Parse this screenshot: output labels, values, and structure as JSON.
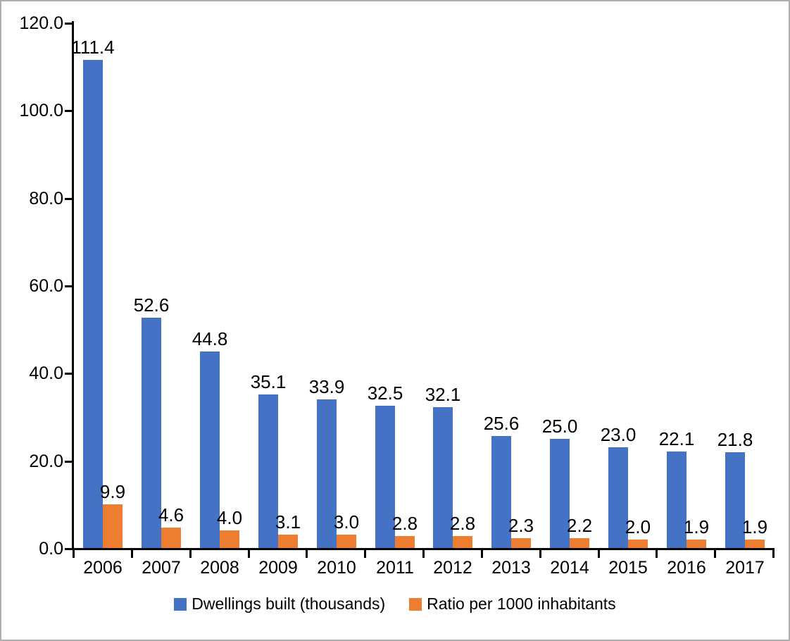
{
  "chart_data": {
    "type": "bar",
    "title": "",
    "categories": [
      "2006",
      "2007",
      "2008",
      "2009",
      "2010",
      "2011",
      "2012",
      "2013",
      "2014",
      "2015",
      "2016",
      "2017"
    ],
    "series": [
      {
        "name": "Dwellings built (thousands)",
        "color": "#4472C4",
        "values": [
          111.4,
          52.6,
          44.8,
          35.1,
          33.9,
          32.5,
          32.1,
          25.6,
          25.0,
          23.0,
          22.1,
          21.8
        ]
      },
      {
        "name": "Ratio per 1000 inhabitants",
        "color": "#ED7D31",
        "values": [
          9.9,
          4.6,
          4.0,
          3.1,
          3.0,
          2.8,
          2.8,
          2.3,
          2.2,
          2.0,
          1.9,
          1.9
        ]
      }
    ],
    "ylim": [
      0,
      120
    ],
    "ytick_step": 20,
    "ytick_labels": [
      "0.0",
      "20.0",
      "40.0",
      "60.0",
      "80.0",
      "100.0",
      "120.0"
    ],
    "grid": false,
    "data_labels": true,
    "legend_position": "bottom",
    "axis_color": "#000000"
  }
}
